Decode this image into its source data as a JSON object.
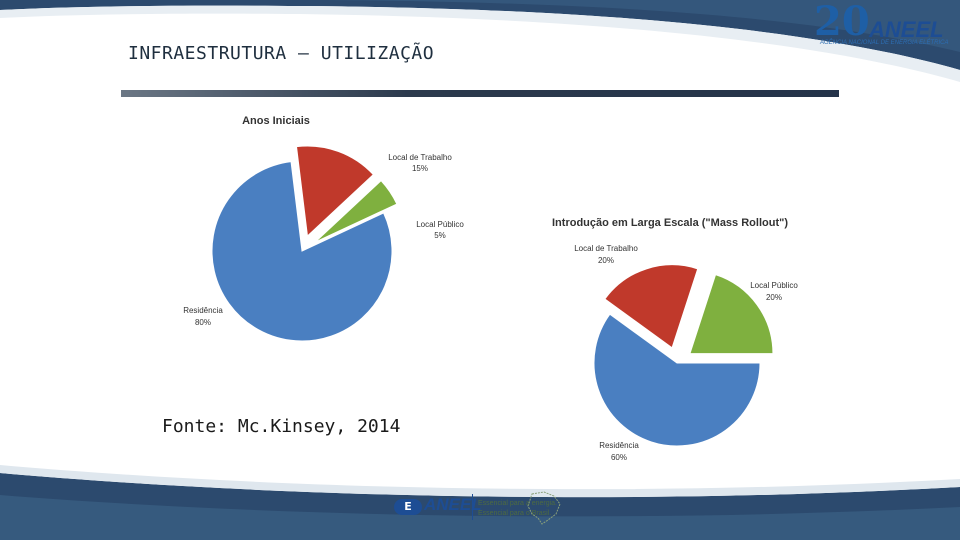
{
  "header": {
    "title": "INFRAESTRUTURA – UTILIZAÇÃO",
    "logo_number": "20",
    "logo_name": "ANEEL",
    "logo_subtitle": "AGÊNCIA NACIONAL DE ENERGIA ELÉTRICA"
  },
  "source_note": "Fonte: Mc.Kinsey, 2014",
  "footer": {
    "brand_mark": "E",
    "brand_name": "ANEEL",
    "tagline_1": "Essencial para a energia.",
    "tagline_2": "Essencial para o Brasil."
  },
  "colors": {
    "residencia": "#4a7fc1",
    "local_trabalho": "#c0392b",
    "local_publico": "#7fb03f"
  },
  "chart_data": [
    {
      "type": "pie",
      "title": "Anos Iniciais",
      "slices": [
        {
          "label": "Residência",
          "value": 80,
          "display": "80%",
          "color_key": "residencia"
        },
        {
          "label": "Local de Trabalho",
          "value": 15,
          "display": "15%",
          "color_key": "local_trabalho"
        },
        {
          "label": "Local Público",
          "value": 5,
          "display": "5%",
          "color_key": "local_publico"
        }
      ]
    },
    {
      "type": "pie",
      "title": "Introdução em Larga Escala (\"Mass Rollout\")",
      "slices": [
        {
          "label": "Residência",
          "value": 60,
          "display": "60%",
          "color_key": "residencia"
        },
        {
          "label": "Local de Trabalho",
          "value": 20,
          "display": "20%",
          "color_key": "local_trabalho"
        },
        {
          "label": "Local Público",
          "value": 20,
          "display": "20%",
          "color_key": "local_publico"
        }
      ]
    }
  ]
}
